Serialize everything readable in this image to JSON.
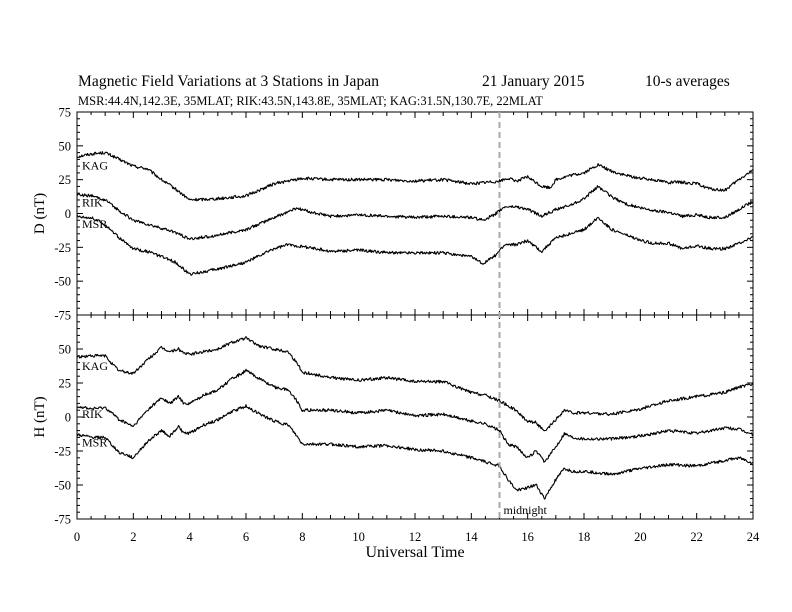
{
  "header": {
    "title": "Magnetic Field Variations at 3 Stations in Japan",
    "date": "21 January 2015",
    "averaging": "10-s averages",
    "subtitle": "MSR:44.4N,142.3E, 35MLAT;  RIK:43.5N,143.8E, 35MLAT;  KAG:31.5N,130.7E, 22MLAT"
  },
  "chart_data": [
    {
      "type": "line",
      "panel": "top",
      "ylabel": "D (nT)",
      "ylim": [
        -75,
        75
      ],
      "yticks": [
        75,
        50,
        25,
        0,
        -25,
        -50,
        -75
      ],
      "xlim": [
        0,
        24
      ],
      "xticks": [
        0,
        2,
        4,
        6,
        8,
        10,
        12,
        14,
        16,
        18,
        20,
        22,
        24
      ],
      "series": [
        {
          "name": "KAG",
          "points": [
            [
              0,
              42
            ],
            [
              0.5,
              44
            ],
            [
              1,
              45
            ],
            [
              1.5,
              40
            ],
            [
              2,
              35
            ],
            [
              2.5,
              33
            ],
            [
              3,
              25
            ],
            [
              3.5,
              18
            ],
            [
              4,
              10
            ],
            [
              5,
              11
            ],
            [
              6,
              13
            ],
            [
              7,
              22
            ],
            [
              8,
              26
            ],
            [
              9,
              25
            ],
            [
              10,
              25
            ],
            [
              11,
              25
            ],
            [
              12,
              24
            ],
            [
              13,
              25
            ],
            [
              14,
              22
            ],
            [
              14.5,
              23
            ],
            [
              15,
              24
            ],
            [
              15.3,
              26
            ],
            [
              15.6,
              24
            ],
            [
              16,
              27
            ],
            [
              16.5,
              20
            ],
            [
              16.8,
              19
            ],
            [
              17,
              25
            ],
            [
              17.5,
              28
            ],
            [
              18,
              30
            ],
            [
              18.5,
              36
            ],
            [
              19,
              31
            ],
            [
              19.5,
              28
            ],
            [
              20,
              26
            ],
            [
              20.5,
              25
            ],
            [
              21,
              23
            ],
            [
              21.5,
              23
            ],
            [
              22,
              22
            ],
            [
              22.5,
              18
            ],
            [
              23,
              17
            ],
            [
              23.5,
              25
            ],
            [
              24,
              32
            ]
          ]
        },
        {
          "name": "RIK",
          "points": [
            [
              0,
              14
            ],
            [
              0.5,
              13
            ],
            [
              1,
              10
            ],
            [
              1.5,
              2
            ],
            [
              2,
              -5
            ],
            [
              2.5,
              -8
            ],
            [
              3,
              -11
            ],
            [
              3.5,
              -14
            ],
            [
              4,
              -19
            ],
            [
              5,
              -16
            ],
            [
              6,
              -12
            ],
            [
              7,
              -3
            ],
            [
              7.8,
              4
            ],
            [
              8.5,
              0
            ],
            [
              9,
              -2
            ],
            [
              10,
              -1
            ],
            [
              11,
              -2
            ],
            [
              12,
              -3
            ],
            [
              13,
              -2
            ],
            [
              14,
              -3
            ],
            [
              14.4,
              -5
            ],
            [
              14.8,
              -1
            ],
            [
              15.2,
              5
            ],
            [
              15.6,
              5
            ],
            [
              16,
              3
            ],
            [
              16.5,
              -2
            ],
            [
              17,
              3
            ],
            [
              17.5,
              6
            ],
            [
              18,
              11
            ],
            [
              18.5,
              20
            ],
            [
              19,
              12
            ],
            [
              19.5,
              7
            ],
            [
              20,
              4
            ],
            [
              20.5,
              2
            ],
            [
              21,
              1
            ],
            [
              21.5,
              -2
            ],
            [
              22,
              -1
            ],
            [
              22.5,
              -3
            ],
            [
              23,
              -3
            ],
            [
              23.5,
              3
            ],
            [
              24,
              9
            ]
          ]
        },
        {
          "name": "MSR",
          "points": [
            [
              0,
              -2
            ],
            [
              0.5,
              -3
            ],
            [
              1,
              -8
            ],
            [
              1.5,
              -18
            ],
            [
              2,
              -26
            ],
            [
              2.5,
              -28
            ],
            [
              3,
              -32
            ],
            [
              3.5,
              -36
            ],
            [
              4,
              -45
            ],
            [
              5,
              -41
            ],
            [
              6,
              -36
            ],
            [
              7,
              -26
            ],
            [
              7.5,
              -23
            ],
            [
              8.5,
              -26
            ],
            [
              9,
              -28
            ],
            [
              10,
              -27
            ],
            [
              11,
              -29
            ],
            [
              12,
              -29
            ],
            [
              13,
              -29
            ],
            [
              14,
              -32
            ],
            [
              14.4,
              -37
            ],
            [
              14.8,
              -32
            ],
            [
              15.2,
              -23
            ],
            [
              15.6,
              -23
            ],
            [
              16,
              -20
            ],
            [
              16.5,
              -28
            ],
            [
              17,
              -18
            ],
            [
              17.5,
              -15
            ],
            [
              18,
              -12
            ],
            [
              18.5,
              -3
            ],
            [
              19,
              -12
            ],
            [
              19.5,
              -16
            ],
            [
              20,
              -20
            ],
            [
              20.5,
              -22
            ],
            [
              21,
              -22
            ],
            [
              21.5,
              -26
            ],
            [
              22,
              -24
            ],
            [
              22.5,
              -26
            ],
            [
              23,
              -26
            ],
            [
              23.5,
              -22
            ],
            [
              24,
              -17
            ]
          ]
        }
      ]
    },
    {
      "type": "line",
      "panel": "bottom",
      "ylabel": "H (nT)",
      "ylim": [
        -75,
        75
      ],
      "yticks": [
        50,
        25,
        0,
        -25,
        -50,
        -75
      ],
      "xlim": [
        0,
        24
      ],
      "xticks": [
        0,
        2,
        4,
        6,
        8,
        10,
        12,
        14,
        16,
        18,
        20,
        22,
        24
      ],
      "xlabel": "Universal Time",
      "series": [
        {
          "name": "KAG",
          "points": [
            [
              0,
              44
            ],
            [
              0.5,
              45
            ],
            [
              1,
              45
            ],
            [
              1.3,
              38
            ],
            [
              1.5,
              34
            ],
            [
              2,
              32
            ],
            [
              2.5,
              42
            ],
            [
              3,
              51
            ],
            [
              3.3,
              48
            ],
            [
              3.6,
              50
            ],
            [
              3.8,
              47
            ],
            [
              4,
              46
            ],
            [
              4.5,
              48
            ],
            [
              5,
              50
            ],
            [
              5.5,
              55
            ],
            [
              6,
              58
            ],
            [
              6.5,
              52
            ],
            [
              7,
              50
            ],
            [
              7.5,
              48
            ],
            [
              7.8,
              40
            ],
            [
              8,
              33
            ],
            [
              9,
              29
            ],
            [
              10,
              27
            ],
            [
              11,
              29
            ],
            [
              12,
              26
            ],
            [
              13,
              26
            ],
            [
              14,
              18
            ],
            [
              14.5,
              16
            ],
            [
              15,
              12
            ],
            [
              15.5,
              6
            ],
            [
              16,
              -3
            ],
            [
              16.3,
              -4
            ],
            [
              16.6,
              -11
            ],
            [
              17,
              -2
            ],
            [
              17.3,
              5
            ],
            [
              17.6,
              3
            ],
            [
              18,
              3
            ],
            [
              19,
              2
            ],
            [
              20,
              6
            ],
            [
              21,
              12
            ],
            [
              22,
              15
            ],
            [
              23,
              18
            ],
            [
              23.5,
              22
            ],
            [
              24,
              24
            ]
          ]
        },
        {
          "name": "RIK",
          "points": [
            [
              0,
              8
            ],
            [
              0.5,
              6
            ],
            [
              1,
              7
            ],
            [
              1.3,
              2
            ],
            [
              1.5,
              -2
            ],
            [
              2,
              -7
            ],
            [
              2.5,
              5
            ],
            [
              3,
              14
            ],
            [
              3.3,
              10
            ],
            [
              3.6,
              15
            ],
            [
              3.8,
              10
            ],
            [
              4,
              10
            ],
            [
              4.5,
              16
            ],
            [
              5,
              20
            ],
            [
              5.5,
              28
            ],
            [
              6,
              34
            ],
            [
              6.5,
              28
            ],
            [
              7,
              22
            ],
            [
              7.5,
              20
            ],
            [
              7.8,
              12
            ],
            [
              8,
              5
            ],
            [
              9,
              5
            ],
            [
              10,
              3
            ],
            [
              11,
              5
            ],
            [
              12,
              1
            ],
            [
              13,
              2
            ],
            [
              14,
              -3
            ],
            [
              14.5,
              -5
            ],
            [
              15,
              -10
            ],
            [
              15.3,
              -20
            ],
            [
              15.6,
              -22
            ],
            [
              16,
              -30
            ],
            [
              16.3,
              -25
            ],
            [
              16.6,
              -33
            ],
            [
              17,
              -22
            ],
            [
              17.3,
              -12
            ],
            [
              17.6,
              -15
            ],
            [
              18,
              -16
            ],
            [
              19,
              -16
            ],
            [
              20,
              -14
            ],
            [
              21,
              -10
            ],
            [
              22,
              -12
            ],
            [
              23,
              -8
            ],
            [
              23.5,
              -9
            ],
            [
              24,
              -13
            ]
          ]
        },
        {
          "name": "MSR",
          "points": [
            [
              0,
              -13
            ],
            [
              0.5,
              -15
            ],
            [
              1,
              -15
            ],
            [
              1.3,
              -22
            ],
            [
              1.5,
              -26
            ],
            [
              2,
              -30
            ],
            [
              2.5,
              -18
            ],
            [
              3,
              -10
            ],
            [
              3.3,
              -14
            ],
            [
              3.6,
              -7
            ],
            [
              3.8,
              -12
            ],
            [
              4,
              -12
            ],
            [
              4.5,
              -6
            ],
            [
              5,
              -2
            ],
            [
              5.5,
              4
            ],
            [
              6,
              8
            ],
            [
              6.5,
              2
            ],
            [
              7,
              -3
            ],
            [
              7.5,
              -6
            ],
            [
              7.8,
              -14
            ],
            [
              8,
              -20
            ],
            [
              9,
              -20
            ],
            [
              10,
              -22
            ],
            [
              11,
              -21
            ],
            [
              12,
              -24
            ],
            [
              13,
              -25
            ],
            [
              14,
              -30
            ],
            [
              14.5,
              -33
            ],
            [
              15,
              -36
            ],
            [
              15.3,
              -46
            ],
            [
              15.6,
              -54
            ],
            [
              16,
              -52
            ],
            [
              16.3,
              -50
            ],
            [
              16.6,
              -60
            ],
            [
              17,
              -46
            ],
            [
              17.3,
              -38
            ],
            [
              17.6,
              -40
            ],
            [
              18,
              -40
            ],
            [
              19,
              -42
            ],
            [
              20,
              -38
            ],
            [
              21,
              -35
            ],
            [
              22,
              -36
            ],
            [
              23,
              -32
            ],
            [
              23.5,
              -30
            ],
            [
              24,
              -34
            ]
          ]
        }
      ]
    }
  ],
  "annotations": {
    "midnight_label": "midnight",
    "midnight_ut": 15
  },
  "colors": {
    "line": "#000000",
    "dashed_marker": "#aaaaaa"
  }
}
